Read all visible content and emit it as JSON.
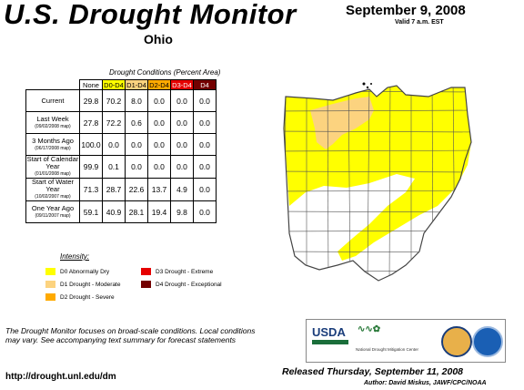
{
  "header": {
    "title": "U.S. Drought Monitor",
    "state": "Ohio",
    "date": "September 9, 2008",
    "valid": "Valid 7 a.m. EST"
  },
  "table": {
    "caption": "Drought Conditions (Percent Area)",
    "columns": [
      {
        "label": "None",
        "color": "#ffffff",
        "text": "#000000"
      },
      {
        "label": "D0-D4",
        "color": "#ffff00",
        "text": "#000000"
      },
      {
        "label": "D1-D4",
        "color": "#fcd37f",
        "text": "#000000"
      },
      {
        "label": "D2-D4",
        "color": "#ffaa00",
        "text": "#000000"
      },
      {
        "label": "D3-D4",
        "color": "#e60000",
        "text": "#ffffff"
      },
      {
        "label": "D4",
        "color": "#730000",
        "text": "#ffffff"
      }
    ],
    "rows": [
      {
        "label": "Current",
        "sub": "",
        "values": [
          "29.8",
          "70.2",
          "8.0",
          "0.0",
          "0.0",
          "0.0"
        ]
      },
      {
        "label": "Last Week",
        "sub": "(09/02/2008 map)",
        "values": [
          "27.8",
          "72.2",
          "0.6",
          "0.0",
          "0.0",
          "0.0"
        ]
      },
      {
        "label": "3 Months Ago",
        "sub": "(06/17/2008 map)",
        "values": [
          "100.0",
          "0.0",
          "0.0",
          "0.0",
          "0.0",
          "0.0"
        ]
      },
      {
        "label": "Start of Calendar Year",
        "sub": "(01/01/2008 map)",
        "values": [
          "99.9",
          "0.1",
          "0.0",
          "0.0",
          "0.0",
          "0.0"
        ]
      },
      {
        "label": "Start of Water Year",
        "sub": "(10/02/2007 map)",
        "values": [
          "71.3",
          "28.7",
          "22.6",
          "13.7",
          "4.9",
          "0.0"
        ]
      },
      {
        "label": "One Year Ago",
        "sub": "(09/11/2007 map)",
        "values": [
          "59.1",
          "40.9",
          "28.1",
          "19.4",
          "9.8",
          "0.0"
        ]
      }
    ]
  },
  "legend": {
    "title": "Intensity:",
    "items": [
      {
        "label": "D0 Abnormally Dry",
        "color": "#ffff00"
      },
      {
        "label": "D1 Drought - Moderate",
        "color": "#fcd37f"
      },
      {
        "label": "D2 Drought - Severe",
        "color": "#ffaa00"
      },
      {
        "label": "D3 Drought - Extreme",
        "color": "#e60000"
      },
      {
        "label": "D4 Drought - Exceptional",
        "color": "#730000"
      }
    ]
  },
  "note": "The Drought Monitor focuses on broad-scale conditions. Local conditions may vary. See accompanying text summary for forecast statements",
  "url": "http://drought.unl.edu/dm",
  "released": "Released Thursday, September 11, 2008",
  "author": "Author: David Miskus, JAWF/CPC/NOAA",
  "logos": {
    "usda": "USDA",
    "ndmc": "National Drought Mitigation Center"
  },
  "map_colors": {
    "none": "#ffffff",
    "d0": "#ffff00",
    "d1": "#fcd37f",
    "border": "#444444"
  }
}
